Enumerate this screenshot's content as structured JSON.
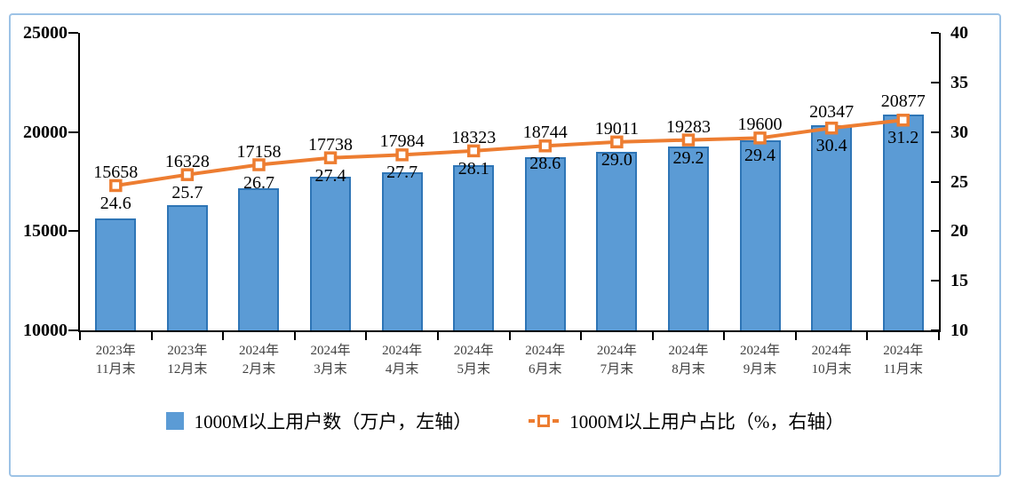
{
  "frame": {
    "border_color": "#9DC3E6",
    "background": "#FFFFFF"
  },
  "chart_data": {
    "type": "bar",
    "subtype": "combo-bar-line-dual-axis",
    "title": "",
    "xlabel": "",
    "ylabel_left": "万户",
    "ylabel_right": "%",
    "grid": false,
    "legend_position": "bottom",
    "categories": [
      [
        "2023年",
        "11月末"
      ],
      [
        "2023年",
        "12月末"
      ],
      [
        "2024年",
        "2月末"
      ],
      [
        "2024年",
        "3月末"
      ],
      [
        "2024年",
        "4月末"
      ],
      [
        "2024年",
        "5月末"
      ],
      [
        "2024年",
        "6月末"
      ],
      [
        "2024年",
        "7月末"
      ],
      [
        "2024年",
        "8月末"
      ],
      [
        "2024年",
        "9月末"
      ],
      [
        "2024年",
        "10月末"
      ],
      [
        "2024年",
        "11月末"
      ]
    ],
    "series": [
      {
        "name": "1000M以上用户数（万户，左轴）",
        "type": "bar",
        "axis": "left",
        "color": "#5B9BD5",
        "border_color": "#2E75B6",
        "values": [
          15658,
          16328,
          17158,
          17738,
          17984,
          18323,
          18744,
          19011,
          19283,
          19600,
          20347,
          20877
        ],
        "labels": [
          "15658",
          "16328",
          "17158",
          "17738",
          "17984",
          "18323",
          "18744",
          "19011",
          "19283",
          "19600",
          "20347",
          "20877"
        ]
      },
      {
        "name": "1000M以上用户占比（%，右轴）",
        "type": "line",
        "axis": "right",
        "color": "#ED7D31",
        "marker": "square-white-center",
        "values": [
          24.6,
          25.7,
          26.7,
          27.4,
          27.7,
          28.1,
          28.6,
          29.0,
          29.2,
          29.4,
          30.4,
          31.2
        ],
        "labels": [
          "24.6",
          "25.7",
          "26.7",
          "27.4",
          "27.7",
          "28.1",
          "28.6",
          "29.0",
          "29.2",
          "29.4",
          "30.4",
          "31.2"
        ]
      }
    ],
    "left_axis": {
      "min": 10000,
      "max": 25000,
      "step": 5000,
      "ticks": [
        "10000",
        "15000",
        "20000",
        "25000"
      ]
    },
    "right_axis": {
      "min": 10,
      "max": 40,
      "step": 5,
      "ticks": [
        "10",
        "15",
        "20",
        "25",
        "30",
        "35",
        "40"
      ]
    }
  }
}
